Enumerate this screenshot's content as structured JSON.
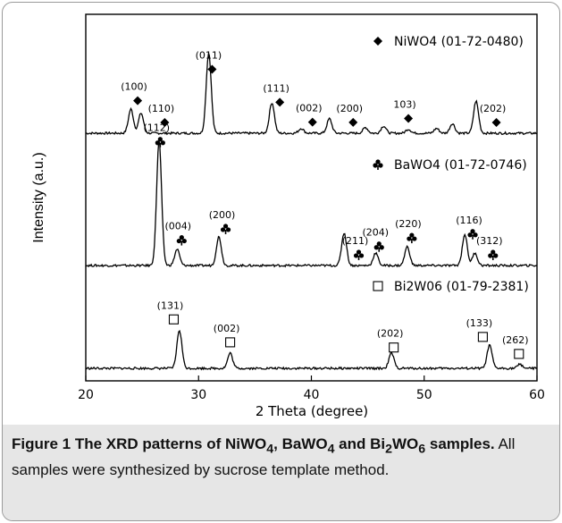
{
  "chart_data": {
    "type": "line",
    "xlabel": "2 Theta (degree)",
    "ylabel": "Intensity (a.u.)",
    "xlim": [
      20,
      60
    ],
    "xticks": [
      20,
      30,
      40,
      50,
      60
    ],
    "series": [
      {
        "name": "NiWO4 (01-72-0480)",
        "marker": "diamond",
        "peaks": [
          {
            "x": 24.0,
            "h": 0.3
          },
          {
            "x": 24.9,
            "h": 0.25
          },
          {
            "x": 30.9,
            "h": 1.0
          },
          {
            "x": 36.5,
            "h": 0.38
          },
          {
            "x": 39.1,
            "h": 0.06
          },
          {
            "x": 41.6,
            "h": 0.18
          },
          {
            "x": 44.8,
            "h": 0.07
          },
          {
            "x": 46.4,
            "h": 0.09
          },
          {
            "x": 48.6,
            "h": 0.05
          },
          {
            "x": 51.1,
            "h": 0.06
          },
          {
            "x": 52.5,
            "h": 0.12
          },
          {
            "x": 54.6,
            "h": 0.4
          }
        ],
        "annotations": [
          {
            "text": "(100)",
            "x": 24.6
          },
          {
            "text": "(110)",
            "x": 27.0
          },
          {
            "text": "(011)",
            "x": 31.2
          },
          {
            "text": "(111)",
            "x": 37.2
          },
          {
            "text": "(002)",
            "x": 40.1
          },
          {
            "text": "(200)",
            "x": 43.7
          },
          {
            "text": "103)",
            "x": 48.6
          },
          {
            "text": "(202)",
            "x": 56.4
          }
        ]
      },
      {
        "name": "BaWO4 (01-72-0746)",
        "marker": "club",
        "peaks": [
          {
            "x": 26.5,
            "h": 1.0
          },
          {
            "x": 28.1,
            "h": 0.13
          },
          {
            "x": 31.8,
            "h": 0.23
          },
          {
            "x": 42.9,
            "h": 0.26
          },
          {
            "x": 45.7,
            "h": 0.1
          },
          {
            "x": 48.5,
            "h": 0.15
          },
          {
            "x": 53.6,
            "h": 0.25
          },
          {
            "x": 54.5,
            "h": 0.1
          }
        ],
        "annotations": [
          {
            "text": "(112)",
            "x": 26.6
          },
          {
            "text": "(004)",
            "x": 28.5
          },
          {
            "text": "(200)",
            "x": 32.4
          },
          {
            "text": "(211)",
            "x": 44.2
          },
          {
            "text": "(204)",
            "x": 46.0
          },
          {
            "text": "(220)",
            "x": 48.9
          },
          {
            "text": "(116)",
            "x": 54.3
          },
          {
            "text": "(312)",
            "x": 56.1
          }
        ]
      },
      {
        "name": "Bi2W06 (01-79-2381)",
        "marker": "square",
        "peaks": [
          {
            "x": 28.3,
            "h": 0.75
          },
          {
            "x": 32.8,
            "h": 0.3
          },
          {
            "x": 47.1,
            "h": 0.3
          },
          {
            "x": 55.8,
            "h": 0.45
          },
          {
            "x": 58.5,
            "h": 0.08
          }
        ],
        "annotations": [
          {
            "text": "(131)",
            "x": 27.8
          },
          {
            "text": "(002)",
            "x": 32.8
          },
          {
            "text": "(202)",
            "x": 47.3
          },
          {
            "text": "(133)",
            "x": 55.2
          },
          {
            "text": "(262)",
            "x": 58.4
          }
        ]
      }
    ],
    "grid": false
  },
  "figure": {
    "caption_bold": "Figure 1 The XRD patterns of NiWO4, BaWO4 and Bi2WO6 samples.",
    "caption_text": "All samples were synthesized by sucrose template method."
  }
}
